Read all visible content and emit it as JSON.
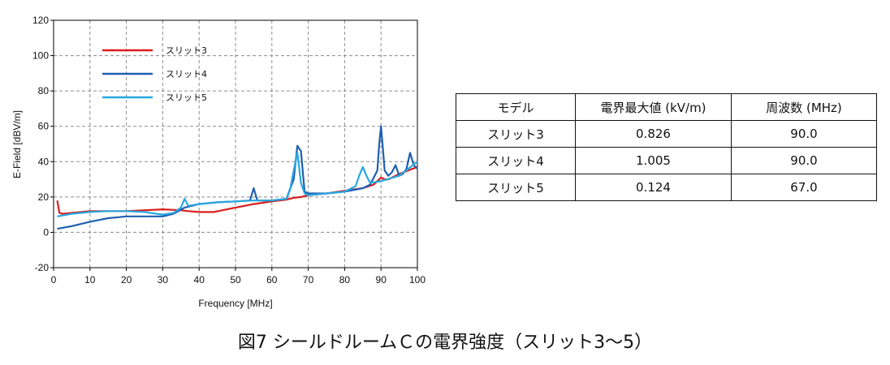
{
  "chart_data": {
    "type": "line",
    "xlabel": "Frequency [MHz]",
    "ylabel": "E-Field [dBV/m]",
    "xlim": [
      0,
      100
    ],
    "ylim": [
      -20,
      120
    ],
    "xticks": [
      0,
      10,
      20,
      30,
      40,
      50,
      60,
      70,
      80,
      90,
      100
    ],
    "yticks": [
      -20,
      0,
      20,
      40,
      60,
      80,
      100,
      120
    ],
    "grid": true,
    "legend_position": "top-left",
    "series": [
      {
        "name": "スリット3",
        "color": "#d81e1e",
        "x": [
          1,
          1.6,
          2.5,
          5,
          10,
          20,
          30,
          35,
          37,
          40,
          44,
          50,
          55,
          60,
          64,
          66,
          68,
          70,
          75,
          80,
          85,
          88,
          89,
          90,
          91,
          92,
          95,
          100
        ],
        "y": [
          18,
          11,
          10.5,
          11,
          12,
          12,
          13,
          12.5,
          12,
          11.5,
          11.5,
          14,
          16,
          17.5,
          18.5,
          19.5,
          20,
          21,
          22,
          23.5,
          25,
          27,
          29,
          31,
          30,
          30,
          33,
          37
        ]
      },
      {
        "name": "スリット4",
        "color": "#1f5fb0",
        "x": [
          1,
          5,
          10,
          15,
          20,
          25,
          28,
          30,
          33,
          36,
          38,
          40,
          45,
          50,
          54,
          55,
          56,
          60,
          64,
          66,
          67,
          68,
          69,
          70,
          75,
          80,
          85,
          87,
          89,
          89.5,
          90,
          90.5,
          91,
          92,
          93,
          94,
          95,
          96,
          97,
          98,
          99,
          100
        ],
        "y": [
          2,
          3.5,
          6,
          8,
          9,
          9,
          9,
          9,
          10.5,
          14,
          15,
          16,
          17,
          17.5,
          18,
          25,
          18,
          18,
          19,
          30,
          49,
          46,
          23,
          22,
          22,
          23,
          25,
          27,
          35,
          50,
          60,
          48,
          35,
          32,
          34,
          38,
          32,
          33,
          36,
          45,
          38,
          36
        ]
      },
      {
        "name": "スリット5",
        "color": "#29a8e0",
        "x": [
          1,
          5,
          10,
          15,
          18,
          20,
          25,
          30,
          33,
          35,
          36,
          37,
          40,
          45,
          50,
          55,
          60,
          64,
          65,
          66,
          67,
          68,
          69,
          70,
          75,
          80,
          83,
          84,
          85,
          86,
          87,
          90,
          95,
          100
        ],
        "y": [
          9,
          10.5,
          11.5,
          12,
          12,
          12,
          11.5,
          10,
          11,
          14,
          19,
          15,
          16,
          17,
          17.5,
          18,
          18,
          19,
          24,
          35,
          45,
          28,
          22,
          21,
          22,
          23,
          26,
          32,
          37,
          32,
          28,
          29,
          32,
          40
        ]
      }
    ]
  },
  "table": {
    "headers": [
      "モデル",
      "電界最大値 (kV/m)",
      "周波数 (MHz)"
    ],
    "rows": [
      [
        "スリット3",
        "0.826",
        "90.0"
      ],
      [
        "スリット4",
        "1.005",
        "90.0"
      ],
      [
        "スリット5",
        "0.124",
        "67.0"
      ]
    ]
  },
  "caption": "図7 シールドルームＣの電界強度（スリット3～5）"
}
